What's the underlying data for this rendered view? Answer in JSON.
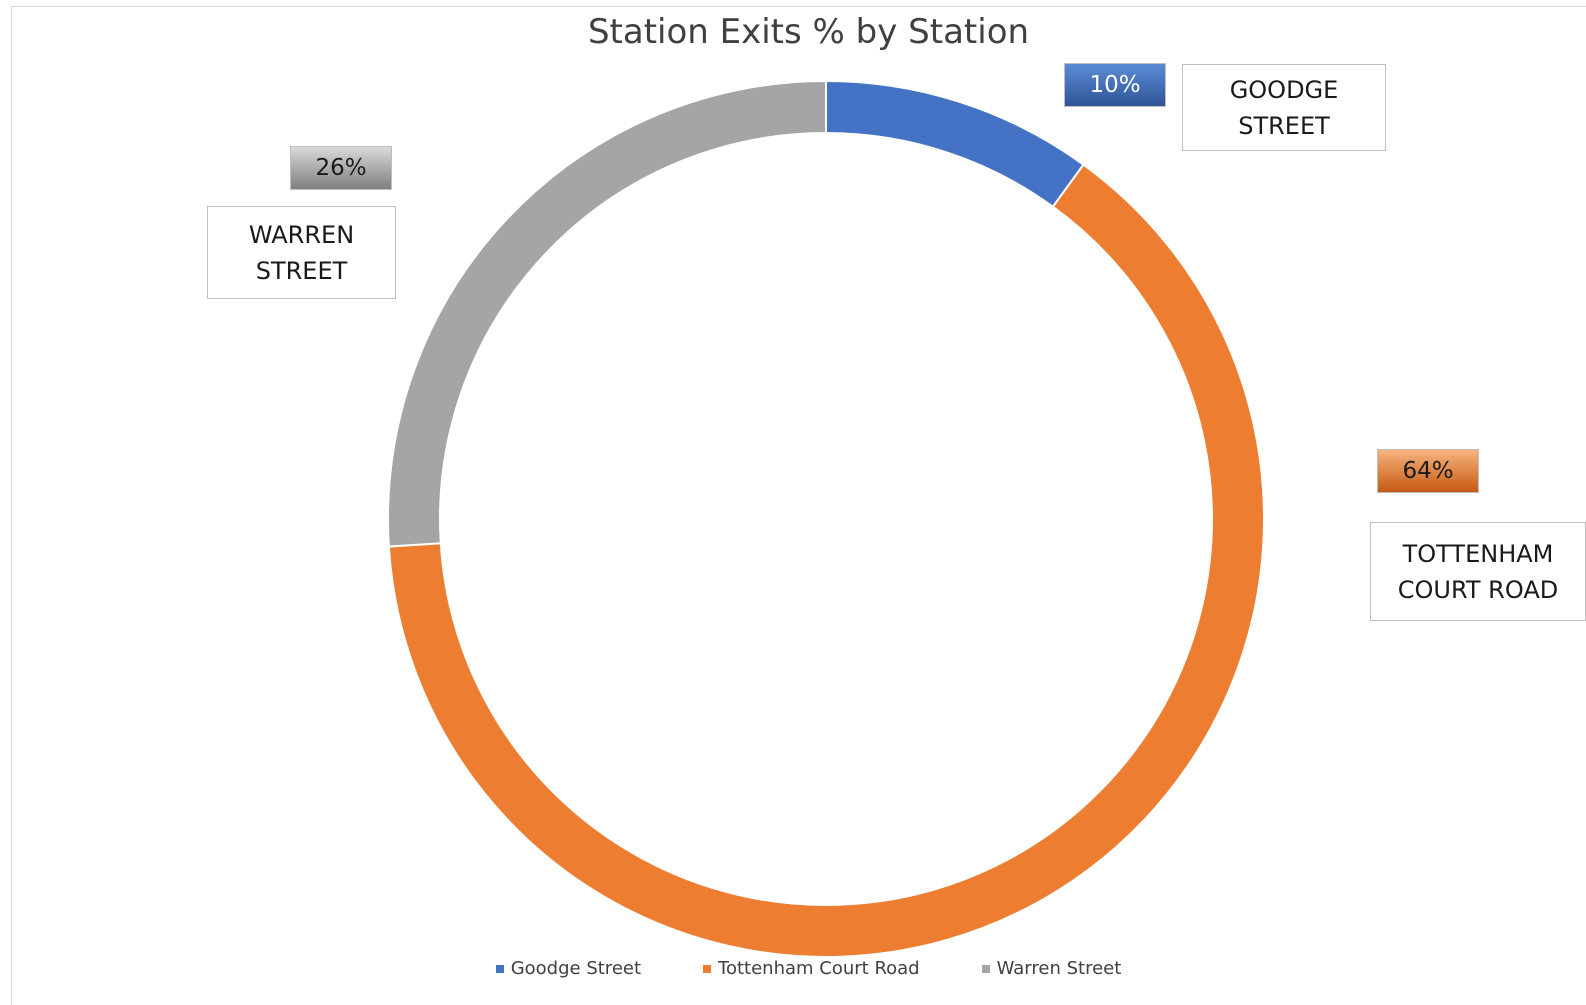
{
  "chart_data": {
    "type": "pie",
    "title": "Station Exits % by Station",
    "categories": [
      "Goodge Street",
      "Tottenham Court Road",
      "Warren Street"
    ],
    "values": [
      10,
      64,
      26
    ],
    "value_labels": [
      "10%",
      "64%",
      "26%"
    ],
    "category_labels": [
      "GOODGE STREET",
      "TOTTENHAM COURT ROAD",
      "WARREN STREET"
    ],
    "colors": [
      "#4472c4",
      "#ed7d31",
      "#a5a5a5"
    ],
    "hole": true,
    "legend_position": "bottom"
  }
}
